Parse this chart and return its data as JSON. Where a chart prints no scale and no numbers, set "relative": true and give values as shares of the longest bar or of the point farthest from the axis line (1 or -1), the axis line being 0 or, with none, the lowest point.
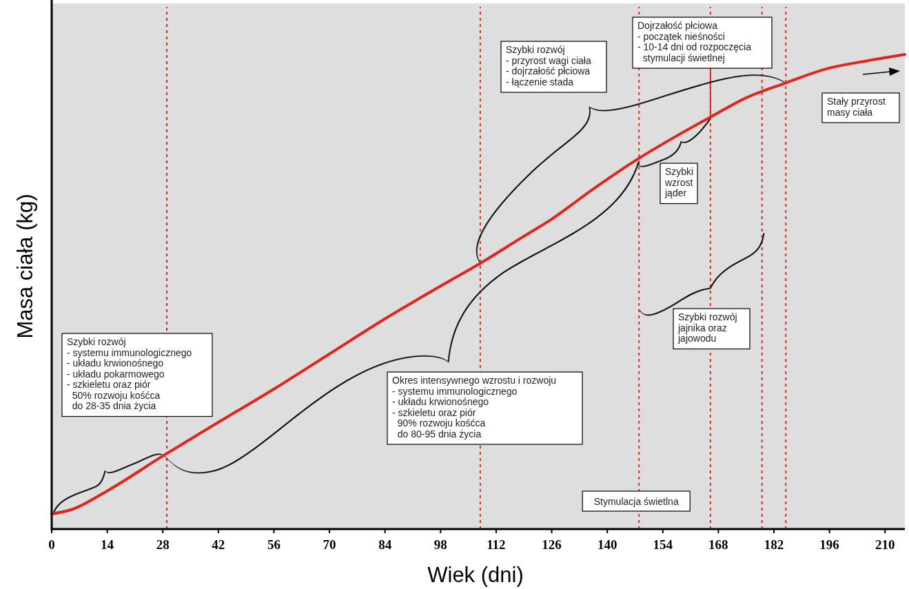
{
  "chart_data": {
    "type": "line",
    "relative": true,
    "xlabel": "Wiek (dni)",
    "ylabel": "Masa ciała (kg)",
    "xlim": [
      0,
      215
    ],
    "xticks": [
      0,
      14,
      28,
      42,
      56,
      70,
      84,
      98,
      112,
      126,
      140,
      154,
      168,
      182,
      196,
      210
    ],
    "x": [
      0,
      5,
      14.1,
      28,
      42,
      56,
      70,
      84,
      98,
      108,
      119,
      126,
      136.4,
      147,
      157,
      166,
      174.6,
      185,
      195.4,
      205.8,
      215
    ],
    "series": [
      {
        "color": "#e3241b",
        "values": [
          0.032,
          0.041,
          0.081,
          0.154,
          0.225,
          0.295,
          0.369,
          0.443,
          0.512,
          0.56,
          0.617,
          0.653,
          0.716,
          0.776,
          0.826,
          0.868,
          0.907,
          0.94,
          0.97,
          0.987,
          1
        ]
      }
    ],
    "ref_lines": [
      {
        "axis": "x",
        "value": 29,
        "label": null,
        "color": "#e3241b",
        "line_style": "dotted"
      },
      {
        "axis": "x",
        "value": 108,
        "label": null,
        "color": "#e3241b",
        "line_style": "dotted"
      },
      {
        "axis": "x",
        "value": 148,
        "label": "Stymulacja świetlna",
        "color": "#e3241b",
        "line_style": "dotted"
      },
      {
        "axis": "x",
        "value": 166,
        "label": null,
        "color": "#e3241b",
        "line_style": "dotted"
      },
      {
        "axis": "x",
        "value": 179,
        "label": null,
        "color": "#e3241b",
        "line_style": "dotted"
      },
      {
        "axis": "x",
        "value": 185,
        "label": null,
        "color": "#e3241b",
        "line_style": "dotted"
      }
    ],
    "annotations": [
      "Szybki rozwój\n- systemu immunologicznego\n- układu krwionośnego\n- układu pokarmowego\n- szkieletu oraz piór\n  50% rozwoju kośćca\n  do 28-35 dnia życia",
      "Okres intensywnego wzrostu i rozwoju\n- systemu immunologicznego\n- układu krwionośnego\n- szkieletu oraz piór\n  90% rozwoju kośćca\n  do 80-95 dnia życia",
      "Szybki rozwój\n- przyrost wagi ciała\n- dojrzałość płciowa\n- łączenie stada",
      "Dojrzałość płciowa\n- początek nieśności\n- 10-14 dni od rozpoczęcia\n  stymulacji świetlnej",
      "Stały przyrost\nmasy ciała",
      "Szybki\nwzrost\njąder",
      "Szybki rozwój\njajnika oraz\njajowodu"
    ],
    "grid": false,
    "marker": "none",
    "line_style": "solid"
  }
}
